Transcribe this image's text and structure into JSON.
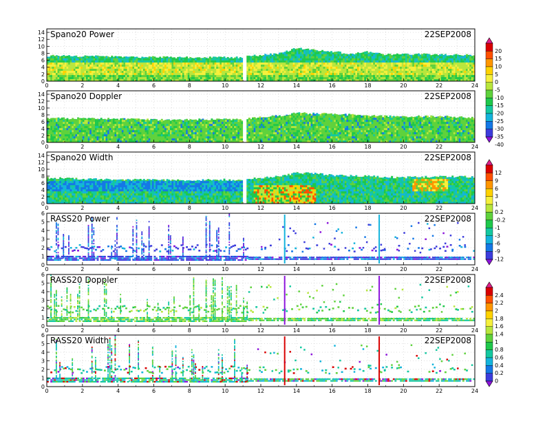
{
  "figure": {
    "date": "22SEP2008"
  },
  "colorbars": {
    "spano_power": {
      "labels": [
        "20",
        "15",
        "10",
        "5",
        "0",
        "-5",
        "-10",
        "-15",
        "-20",
        "-25",
        "-30",
        "-35",
        "-40"
      ],
      "colors": [
        "#e0218a",
        "#d90000",
        "#ff5000",
        "#ff9600",
        "#ffd200",
        "#f5f03c",
        "#b8e63c",
        "#5fd23c",
        "#1fc84b",
        "#14c8a0",
        "#14b4dc",
        "#1478e6",
        "#3c3cdc",
        "#8c14dc"
      ]
    },
    "spano_width": {
      "labels": [
        "12",
        "9",
        "6",
        "3",
        "1",
        "0.2",
        "-0.2",
        "-1",
        "-3",
        "-6",
        "-9",
        "-12"
      ],
      "colors": [
        "#e0218a",
        "#d90000",
        "#ff5000",
        "#ff9600",
        "#ffd200",
        "#f5f03c",
        "#b8e63c",
        "#5fd23c",
        "#1fc84b",
        "#14c8a0",
        "#14b4dc",
        "#1478e6",
        "#3c3cdc",
        "#8c14dc"
      ]
    },
    "rass": {
      "labels": [
        "2.4",
        "2.2",
        "2",
        "1.8",
        "1.6",
        "1.4",
        "1",
        "0.8",
        "0.6",
        "0.4",
        "0.2",
        "0"
      ],
      "colors": [
        "#e0218a",
        "#d90000",
        "#ff5000",
        "#ff9600",
        "#ffd200",
        "#f5f03c",
        "#b8e63c",
        "#5fd23c",
        "#1fc84b",
        "#14c8a0",
        "#14b4dc",
        "#1478e6",
        "#3c3cdc",
        "#8c14dc"
      ]
    }
  },
  "chart_data": [
    {
      "type": "heatmap",
      "title": "Spano20 Power",
      "date": "22SEP2008",
      "x_ticks": [
        "0",
        "2",
        "4",
        "6",
        "8",
        "10",
        "12",
        "14",
        "16",
        "18",
        "20",
        "22",
        "24"
      ],
      "y_ticks": [
        "0",
        "2",
        "4",
        "6",
        "8",
        "10",
        "12",
        "14"
      ],
      "xlim": [
        0,
        24
      ],
      "ylim": [
        0,
        15
      ],
      "gap": [
        11.0,
        11.15
      ],
      "profile": [
        {
          "x": 0,
          "top": 7.3
        },
        {
          "x": 2,
          "top": 7.2
        },
        {
          "x": 4,
          "top": 7.0
        },
        {
          "x": 6,
          "top": 6.9
        },
        {
          "x": 8,
          "top": 6.8
        },
        {
          "x": 10,
          "top": 6.9
        },
        {
          "x": 11,
          "top": 6.7
        },
        {
          "x": 11.15,
          "top": 7.1
        },
        {
          "x": 13,
          "top": 8.0
        },
        {
          "x": 14,
          "top": 9.5
        },
        {
          "x": 15,
          "top": 9.0
        },
        {
          "x": 16,
          "top": 8.5
        },
        {
          "x": 17,
          "top": 7.8
        },
        {
          "x": 18,
          "top": 8.5
        },
        {
          "x": 19,
          "top": 7.6
        },
        {
          "x": 21,
          "top": 7.8
        },
        {
          "x": 23,
          "top": 7.6
        },
        {
          "x": 24,
          "top": 7.4
        }
      ]
    },
    {
      "type": "heatmap",
      "title": "Spano20 Doppler",
      "date": "22SEP2008",
      "x_ticks": [
        "0",
        "2",
        "4",
        "6",
        "8",
        "10",
        "12",
        "14",
        "16",
        "18",
        "20",
        "22",
        "24"
      ],
      "y_ticks": [
        "0",
        "2",
        "4",
        "6",
        "8",
        "10",
        "12",
        "14"
      ],
      "xlim": [
        0,
        24
      ],
      "ylim": [
        0,
        15
      ],
      "gap": [
        11.0,
        11.15
      ],
      "profile": [
        {
          "x": 0,
          "top": 7.0
        },
        {
          "x": 2,
          "top": 7.0
        },
        {
          "x": 4,
          "top": 6.8
        },
        {
          "x": 6,
          "top": 6.6
        },
        {
          "x": 8,
          "top": 6.6
        },
        {
          "x": 10,
          "top": 6.8
        },
        {
          "x": 11,
          "top": 6.5
        },
        {
          "x": 11.15,
          "top": 7.0
        },
        {
          "x": 13,
          "top": 7.8
        },
        {
          "x": 14,
          "top": 8.5
        },
        {
          "x": 16,
          "top": 8.3
        },
        {
          "x": 18,
          "top": 7.8
        },
        {
          "x": 20,
          "top": 7.5
        },
        {
          "x": 22,
          "top": 7.6
        },
        {
          "x": 24,
          "top": 7.2
        }
      ]
    },
    {
      "type": "heatmap",
      "title": "Spano20 Width",
      "date": "22SEP2008",
      "x_ticks": [
        "0",
        "2",
        "4",
        "6",
        "8",
        "10",
        "12",
        "14",
        "16",
        "18",
        "20",
        "22",
        "24"
      ],
      "y_ticks": [
        "0",
        "2",
        "4",
        "6",
        "8",
        "10",
        "12",
        "14"
      ],
      "xlim": [
        0,
        24
      ],
      "ylim": [
        0,
        15
      ],
      "gap": [
        11.0,
        11.15
      ],
      "profile": [
        {
          "x": 0,
          "top": 7.5
        },
        {
          "x": 2,
          "top": 7.2
        },
        {
          "x": 4,
          "top": 7.0
        },
        {
          "x": 6,
          "top": 6.9
        },
        {
          "x": 8,
          "top": 6.8
        },
        {
          "x": 10,
          "top": 7.0
        },
        {
          "x": 11,
          "top": 6.7
        },
        {
          "x": 11.15,
          "top": 7.2
        },
        {
          "x": 13,
          "top": 7.9
        },
        {
          "x": 14,
          "top": 9.0
        },
        {
          "x": 15,
          "top": 8.8
        },
        {
          "x": 16,
          "top": 8.2
        },
        {
          "x": 18,
          "top": 8.0
        },
        {
          "x": 20,
          "top": 7.6
        },
        {
          "x": 22,
          "top": 7.9
        },
        {
          "x": 24,
          "top": 7.8
        }
      ]
    },
    {
      "type": "scatter",
      "title": "RASS20 Power",
      "date": "22SEP2008",
      "x_ticks": [
        "0",
        "2",
        "4",
        "6",
        "8",
        "10",
        "12",
        "14",
        "16",
        "18",
        "20",
        "22",
        "24"
      ],
      "y_ticks": [
        "0",
        "1",
        "2",
        "3",
        "4",
        "5",
        "6"
      ],
      "xlim": [
        0,
        24
      ],
      "ylim": [
        0,
        6
      ]
    },
    {
      "type": "scatter",
      "title": "RASS20 Doppler",
      "date": "22SEP2008",
      "x_ticks": [
        "0",
        "2",
        "4",
        "6",
        "8",
        "10",
        "12",
        "14",
        "16",
        "18",
        "20",
        "22",
        "24"
      ],
      "y_ticks": [
        "0",
        "1",
        "2",
        "3",
        "4",
        "5",
        "6"
      ],
      "xlim": [
        0,
        24
      ],
      "ylim": [
        0,
        6
      ]
    },
    {
      "type": "scatter",
      "title": "RASS20 Width",
      "date": "22SEP2008",
      "x_ticks": [
        "0",
        "2",
        "4",
        "6",
        "8",
        "10",
        "12",
        "14",
        "16",
        "18",
        "20",
        "22",
        "24"
      ],
      "y_ticks": [
        "0",
        "1",
        "2",
        "3",
        "4",
        "5",
        "6"
      ],
      "xlim": [
        0,
        24
      ],
      "ylim": [
        0,
        6
      ]
    }
  ]
}
